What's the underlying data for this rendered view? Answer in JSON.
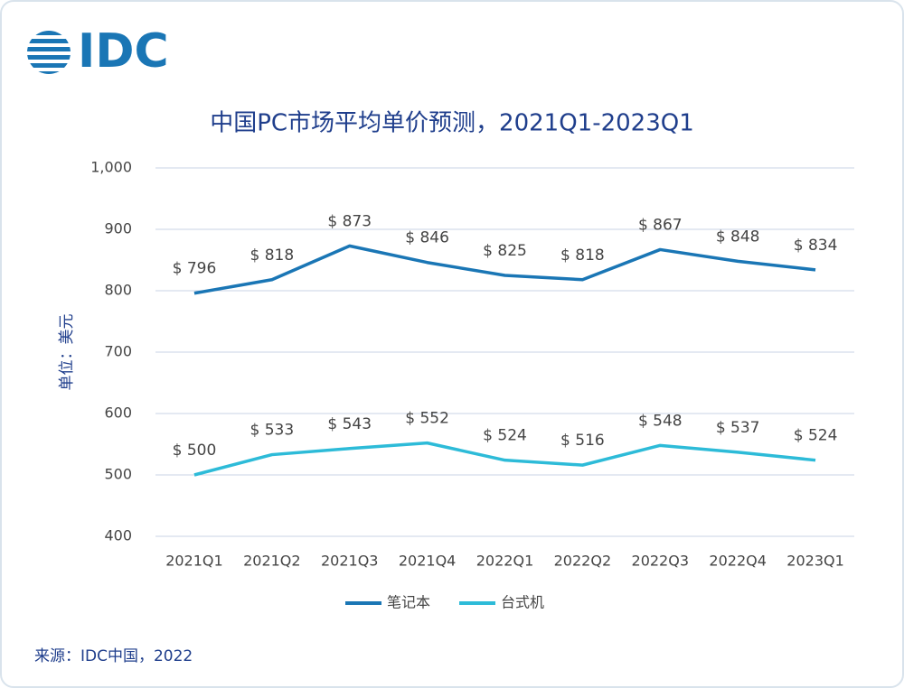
{
  "chart_data": {
    "type": "line",
    "logo": "IDC",
    "title": "中国PC市场平均单价预测，2021Q1-2023Q1",
    "y_label": "单位：美元",
    "source": "来源：IDC中国，2022",
    "categories": [
      "2021Q1",
      "2021Q2",
      "2021Q3",
      "2021Q4",
      "2022Q1",
      "2022Q2",
      "2022Q3",
      "2022Q4",
      "2023Q1"
    ],
    "series": [
      {
        "name": "笔记本",
        "color": "#1a76b5",
        "values": [
          796,
          818,
          873,
          846,
          825,
          818,
          867,
          848,
          834
        ],
        "value_labels": [
          "$ 796",
          "$ 818",
          "$ 873",
          "$ 846",
          "$ 825",
          "$ 818",
          "$ 867",
          "$ 848",
          "$ 834"
        ]
      },
      {
        "name": "台式机",
        "color": "#2dbbd8",
        "values": [
          500,
          533,
          543,
          552,
          524,
          516,
          548,
          537,
          524
        ],
        "value_labels": [
          "$ 500",
          "$ 533",
          "$ 543",
          "$ 552",
          "$ 524",
          "$ 516",
          "$ 548",
          "$ 537",
          "$ 524"
        ]
      }
    ],
    "ylim": [
      400,
      1000
    ],
    "yticks": [
      400,
      500,
      600,
      700,
      800,
      900,
      {
        "value": 1000,
        "label": "1,000"
      }
    ],
    "grid": true,
    "legend": "bottom"
  }
}
